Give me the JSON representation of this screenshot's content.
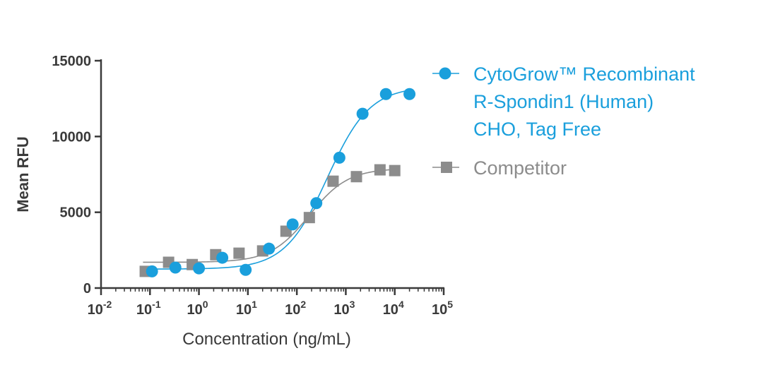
{
  "chart_data": {
    "type": "scatter",
    "xscale": "log",
    "xlabel": "Concentration (ng/mL)",
    "ylabel": "Mean RFU",
    "xlim": [
      0.01,
      100000
    ],
    "ylim": [
      0,
      15000
    ],
    "x_ticks": [
      {
        "value": 0.01,
        "base": "10",
        "exp": "-2"
      },
      {
        "value": 0.1,
        "base": "10",
        "exp": "-1"
      },
      {
        "value": 1,
        "base": "10",
        "exp": "0"
      },
      {
        "value": 10,
        "base": "10",
        "exp": "1"
      },
      {
        "value": 100,
        "base": "10",
        "exp": "2"
      },
      {
        "value": 1000,
        "base": "10",
        "exp": "3"
      },
      {
        "value": 10000,
        "base": "10",
        "exp": "4"
      },
      {
        "value": 100000,
        "base": "10",
        "exp": "5"
      }
    ],
    "y_ticks": [
      {
        "value": 0,
        "label": "0"
      },
      {
        "value": 5000,
        "label": "5000"
      },
      {
        "value": 10000,
        "label": "10000"
      },
      {
        "value": 15000,
        "label": "15000"
      }
    ],
    "legend_position": "right",
    "series": [
      {
        "name": "CytoGrow™ Recombinant R-Spondin1 (Human) CHO, Tag Free",
        "legend_lines": [
          "CytoGrow™ Recombinant",
          "R-Spondin1 (Human)",
          "CHO, Tag Free"
        ],
        "color": "#1a9fdc",
        "marker": "circle",
        "x": [
          0.11,
          0.33,
          1,
          3,
          9,
          27,
          82,
          250,
          740,
          2200,
          6600,
          20000
        ],
        "y": [
          1100,
          1350,
          1300,
          2000,
          1200,
          2600,
          4200,
          5600,
          8600,
          11500,
          12800,
          12800
        ],
        "fit": {
          "bottom": 1250,
          "top": 13300,
          "ec50": 420,
          "hill": 1.0
        }
      },
      {
        "name": "Competitor",
        "legend_lines": [
          "Competitor"
        ],
        "color": "#8c8c8c",
        "marker": "square",
        "x": [
          0.08,
          0.24,
          0.73,
          2.2,
          6.6,
          20,
          60,
          180,
          550,
          1650,
          5000,
          10000
        ],
        "y": [
          1100,
          1700,
          1550,
          2200,
          2300,
          2450,
          3750,
          4650,
          7050,
          7350,
          7800,
          7750
        ],
        "fit": {
          "bottom": 1700,
          "top": 7900,
          "ec50": 180,
          "hill": 1.1
        }
      }
    ]
  }
}
